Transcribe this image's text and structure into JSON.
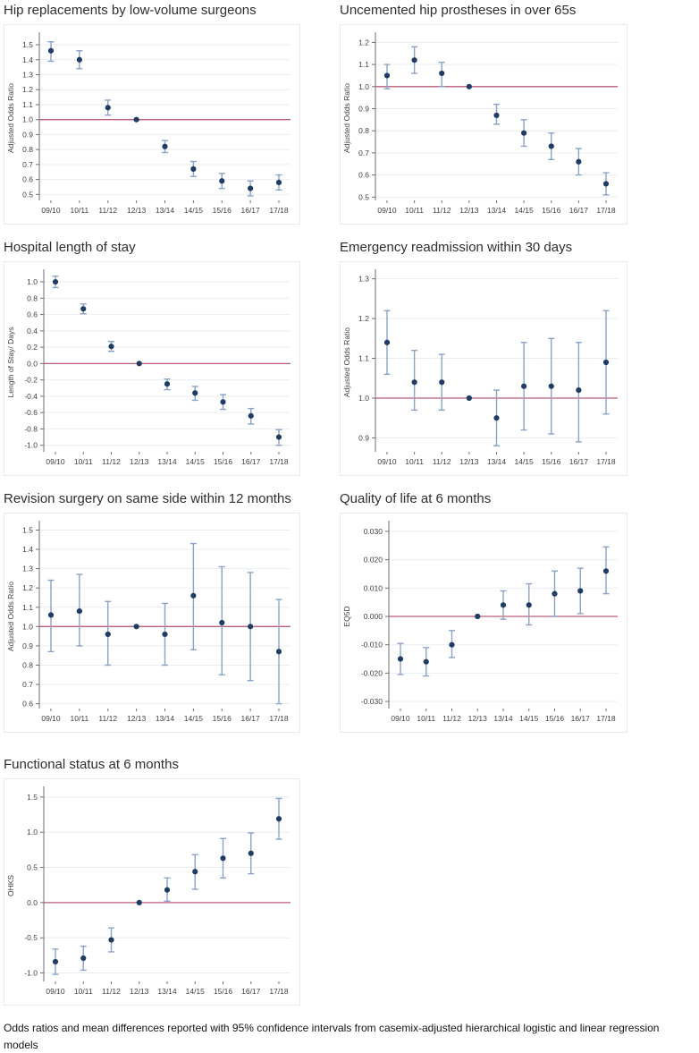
{
  "page": {
    "caption": "Odds ratios and mean differences reported with 95% confidence intervals from casemix-adjusted hierarchical logistic and linear regression models"
  },
  "colors": {
    "marker": "#1f3c64",
    "error_bar": "#8aa2c8",
    "reference_line": "#bb5c78",
    "gridline": "#e9edf2",
    "axis": "#6f6f6f",
    "tick_label": "#3f3f3f",
    "title": "#2e2e2e",
    "frame": "#e9e9e9"
  },
  "chart_data": [
    {
      "type": "scatter",
      "title": "Hip replacements by low-volume surgeons",
      "ylabel": "Adjusted Odds Ratio",
      "xlabel": "",
      "legend": "none",
      "grid": true,
      "categories": [
        "09/10",
        "10/11",
        "11/12",
        "12/13",
        "13/14",
        "14/15",
        "15/16",
        "16/17",
        "17/18"
      ],
      "values": [
        1.46,
        1.4,
        1.08,
        1.0,
        0.82,
        0.67,
        0.59,
        0.54,
        0.58
      ],
      "ci_low": [
        1.39,
        1.34,
        1.03,
        1.0,
        0.78,
        0.62,
        0.54,
        0.49,
        0.53
      ],
      "ci_high": [
        1.52,
        1.46,
        1.13,
        1.0,
        0.86,
        0.72,
        0.64,
        0.59,
        0.63
      ],
      "reference_value": 1.0,
      "ylim": [
        0.46,
        1.56
      ],
      "yticks": [
        0.5,
        0.6,
        0.7,
        0.8,
        0.9,
        1.0,
        1.1,
        1.2,
        1.3,
        1.4,
        1.5
      ],
      "ytick_labels": [
        "0.5",
        "0.6",
        "0.7",
        "0.8",
        "0.9",
        "1.0",
        "1.1",
        "1.2",
        "1.3",
        "1.4",
        "1.5"
      ]
    },
    {
      "type": "scatter",
      "title": "Uncemented hip prostheses in over 65s",
      "ylabel": "Adjusted Odds Ratio",
      "xlabel": "",
      "legend": "none",
      "grid": true,
      "categories": [
        "09/10",
        "10/11",
        "11/12",
        "12/13",
        "13/14",
        "14/15",
        "15/16",
        "16/17",
        "17/18"
      ],
      "values": [
        1.05,
        1.12,
        1.06,
        1.0,
        0.87,
        0.79,
        0.73,
        0.66,
        0.56
      ],
      "ci_low": [
        0.99,
        1.06,
        1.0,
        1.0,
        0.83,
        0.73,
        0.67,
        0.6,
        0.51
      ],
      "ci_high": [
        1.1,
        1.18,
        1.11,
        1.0,
        0.92,
        0.85,
        0.79,
        0.72,
        0.61
      ],
      "reference_value": 1.0,
      "ylim": [
        0.485,
        1.23
      ],
      "yticks": [
        0.5,
        0.6,
        0.7,
        0.8,
        0.9,
        1.0,
        1.1,
        1.2
      ],
      "ytick_labels": [
        "0.5",
        "0.6",
        "0.7",
        "0.8",
        "0.9",
        "1.0",
        "1.1",
        "1.2"
      ]
    },
    {
      "type": "scatter",
      "title": "Hospital length of stay",
      "ylabel": "Length of Stay/ Days",
      "xlabel": "",
      "legend": "none",
      "grid": true,
      "categories": [
        "09/10",
        "10/11",
        "11/12",
        "12/13",
        "13/14",
        "14/15",
        "15/16",
        "16/17",
        "17/18"
      ],
      "values": [
        1.0,
        0.67,
        0.21,
        0.0,
        -0.25,
        -0.36,
        -0.47,
        -0.64,
        -0.9
      ],
      "ci_low": [
        0.93,
        0.61,
        0.15,
        0.0,
        -0.32,
        -0.45,
        -0.56,
        -0.74,
        -1.0
      ],
      "ci_high": [
        1.07,
        0.73,
        0.27,
        0.0,
        -0.19,
        -0.28,
        -0.38,
        -0.55,
        -0.81
      ],
      "reference_value": 0.0,
      "ylim": [
        -1.08,
        1.11
      ],
      "yticks": [
        -1.0,
        -0.8,
        -0.6,
        -0.4,
        -0.2,
        0.0,
        0.2,
        0.4,
        0.6,
        0.8,
        1.0
      ],
      "ytick_labels": [
        "-1.0",
        "-0.8",
        "-0.6",
        "-0.4",
        "-0.2",
        "0.0",
        "0.2",
        "0.4",
        "0.6",
        "0.8",
        "1.0"
      ]
    },
    {
      "type": "scatter",
      "title": "Emergency readmission within 30 days",
      "ylabel": "Adjusted Odds Ratio",
      "xlabel": "",
      "legend": "none",
      "grid": true,
      "categories": [
        "09/10",
        "10/11",
        "11/12",
        "12/13",
        "13/14",
        "14/15",
        "15/16",
        "16/17",
        "17/18"
      ],
      "values": [
        1.14,
        1.04,
        1.04,
        1.0,
        0.95,
        1.03,
        1.03,
        1.02,
        1.09
      ],
      "ci_low": [
        1.06,
        0.97,
        0.97,
        1.0,
        0.88,
        0.92,
        0.91,
        0.89,
        0.96
      ],
      "ci_high": [
        1.22,
        1.12,
        1.11,
        1.0,
        1.02,
        1.14,
        1.15,
        1.14,
        1.22
      ],
      "reference_value": 1.0,
      "ylim": [
        0.865,
        1.315
      ],
      "yticks": [
        0.9,
        1.0,
        1.1,
        1.2,
        1.3
      ],
      "ytick_labels": [
        "0.9",
        "1.0",
        "1.1",
        "1.2",
        "1.3"
      ]
    },
    {
      "type": "scatter",
      "title": "Revision surgery on same side within 12 months",
      "ylabel": "Adjusted Odds Ratio",
      "xlabel": "",
      "legend": "none",
      "grid": true,
      "categories": [
        "09/10",
        "10/11",
        "11/12",
        "12/13",
        "13/14",
        "14/15",
        "15/16",
        "16/17",
        "17/18"
      ],
      "values": [
        1.06,
        1.08,
        0.96,
        1.0,
        0.96,
        1.16,
        1.02,
        1.0,
        0.87
      ],
      "ci_low": [
        0.87,
        0.9,
        0.8,
        1.0,
        0.8,
        0.88,
        0.75,
        0.72,
        0.6
      ],
      "ci_high": [
        1.24,
        1.27,
        1.13,
        1.0,
        1.12,
        1.43,
        1.31,
        1.28,
        1.14
      ],
      "reference_value": 1.0,
      "ylim": [
        0.575,
        1.53
      ],
      "yticks": [
        0.6,
        0.7,
        0.8,
        0.9,
        1.0,
        1.1,
        1.2,
        1.3,
        1.4,
        1.5
      ],
      "ytick_labels": [
        "0.6",
        "0.7",
        "0.8",
        "0.9",
        "1.0",
        "1.1",
        "1.2",
        "1.3",
        "1.4",
        "1.5"
      ]
    },
    {
      "type": "scatter",
      "title": "Quality of life at 6 months",
      "ylabel": "EQ5D",
      "xlabel": "",
      "legend": "none",
      "grid": true,
      "categories": [
        "09/10",
        "10/11",
        "11/12",
        "12/13",
        "13/14",
        "14/15",
        "15/16",
        "16/17",
        "17/18"
      ],
      "values": [
        -0.015,
        -0.016,
        -0.01,
        0.0,
        0.004,
        0.004,
        0.008,
        0.009,
        0.016
      ],
      "ci_low": [
        -0.0205,
        -0.021,
        -0.0145,
        0.0,
        -0.001,
        -0.003,
        0.0,
        0.001,
        0.008
      ],
      "ci_high": [
        -0.0095,
        -0.011,
        -0.005,
        0.0,
        0.009,
        0.0115,
        0.016,
        0.017,
        0.0245
      ],
      "reference_value": 0.0,
      "ylim": [
        -0.0325,
        0.0325
      ],
      "yticks": [
        -0.03,
        -0.02,
        -0.01,
        0.0,
        0.01,
        0.02,
        0.03
      ],
      "ytick_labels": [
        "-0.030",
        "-0.020",
        "-0.010",
        "0.000",
        "0.010",
        "0.020",
        "0.030"
      ]
    },
    {
      "type": "scatter",
      "title": "Functional status at 6 months",
      "ylabel": "OHKS",
      "xlabel": "",
      "legend": "none",
      "grid": true,
      "categories": [
        "09/10",
        "10/11",
        "11/12",
        "12/13",
        "13/14",
        "14/15",
        "15/16",
        "16/17",
        "17/18"
      ],
      "values": [
        -0.84,
        -0.79,
        -0.53,
        0.0,
        0.18,
        0.44,
        0.63,
        0.7,
        1.19
      ],
      "ci_low": [
        -1.02,
        -0.96,
        -0.7,
        0.0,
        0.02,
        0.19,
        0.35,
        0.41,
        0.9
      ],
      "ci_high": [
        -0.66,
        -0.62,
        -0.36,
        0.0,
        0.35,
        0.68,
        0.91,
        0.99,
        1.48
      ],
      "reference_value": 0.0,
      "ylim": [
        -1.12,
        1.6
      ],
      "yticks": [
        -1.0,
        -0.5,
        0.0,
        0.5,
        1.0,
        1.5
      ],
      "ytick_labels": [
        "-1.0",
        "-0.5",
        "0.0",
        "0.5",
        "1.0",
        "1.5"
      ]
    }
  ]
}
